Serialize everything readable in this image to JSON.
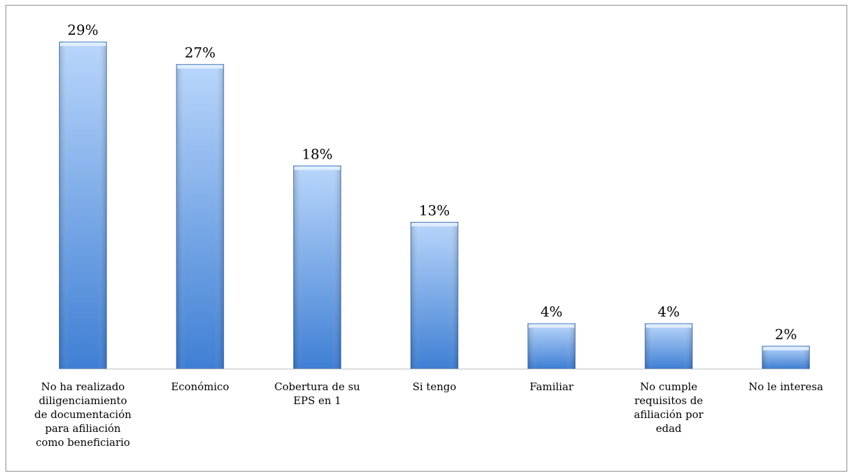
{
  "chart_data": {
    "type": "bar",
    "categories": [
      "No ha realizado diligenciamiento de documentación para afiliación como beneficiario",
      "Económico",
      "Cobertura de su EPS en 1",
      "Si tengo",
      "Familiar",
      "No cumple requisitos de afiliación por edad",
      "No le interesa"
    ],
    "category_lines": [
      [
        "No ha realizado",
        "diligenciamiento",
        "de documentación",
        "para afiliación",
        "como beneficiario"
      ],
      [
        "Económico"
      ],
      [
        "Cobertura de su",
        "EPS en 1"
      ],
      [
        "Si tengo"
      ],
      [
        "Familiar"
      ],
      [
        "No cumple",
        "requisitos de",
        "afiliación por",
        "edad"
      ],
      [
        "No le interesa"
      ]
    ],
    "values": [
      29,
      27,
      18,
      13,
      4,
      4,
      2
    ],
    "data_labels": [
      "29%",
      "27%",
      "18%",
      "13%",
      "4%",
      "4%",
      "2%"
    ],
    "unit": "%",
    "title": "",
    "xlabel": "",
    "ylabel": "",
    "ylim": [
      0,
      32
    ],
    "grid": false,
    "legend": "none",
    "colors": {
      "bar_top": "#b9d6fb",
      "bar_bottom": "#3f7fd4",
      "bar_edge": "#3a70bc"
    }
  }
}
